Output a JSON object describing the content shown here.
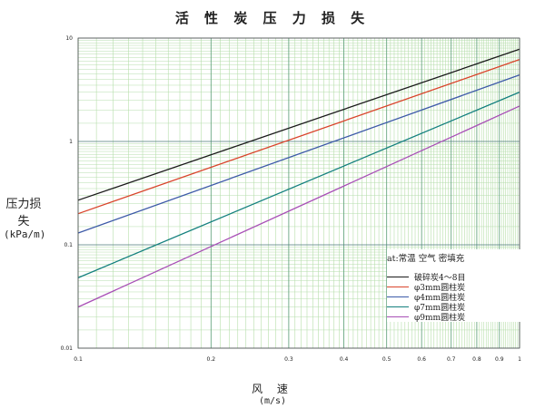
{
  "chart_data": {
    "type": "line",
    "title": "活 性 炭 压 力 损 失",
    "xlabel": "风 速",
    "xunit": "(m/s)",
    "ylabel": "压力损失",
    "yunit": "(kPa/m)",
    "x_scale": "log",
    "y_scale": "log",
    "xlim": [
      0.1,
      1
    ],
    "ylim": [
      0.01,
      10
    ],
    "x_ticks": [
      "0.1",
      "0.2",
      "0.3",
      "0.4",
      "0.5",
      "0.6",
      "0.7",
      "0.8",
      "0.9",
      "1"
    ],
    "y_ticks": [
      "0.01",
      "0.1",
      "1",
      "10"
    ],
    "grid": true,
    "legend_title": "at:常温 空气 密填充",
    "legend_position": "bottom-right",
    "series": [
      {
        "name": "破碎炭4～8目",
        "color": "#1a1a1a",
        "x": [
          0.1,
          1
        ],
        "y": [
          0.27,
          7.8
        ]
      },
      {
        "name": "φ3mm圆柱炭",
        "color": "#d9442b",
        "x": [
          0.1,
          1
        ],
        "y": [
          0.2,
          6.2
        ]
      },
      {
        "name": "φ4mm圆柱炭",
        "color": "#3d5aa8",
        "x": [
          0.1,
          1
        ],
        "y": [
          0.13,
          4.4
        ]
      },
      {
        "name": "φ7mm圆柱炭",
        "color": "#14807e",
        "x": [
          0.1,
          1
        ],
        "y": [
          0.048,
          3.0
        ]
      },
      {
        "name": "φ9mm圆柱炭",
        "color": "#a84fb6",
        "x": [
          0.1,
          1
        ],
        "y": [
          0.025,
          2.2
        ]
      }
    ]
  }
}
